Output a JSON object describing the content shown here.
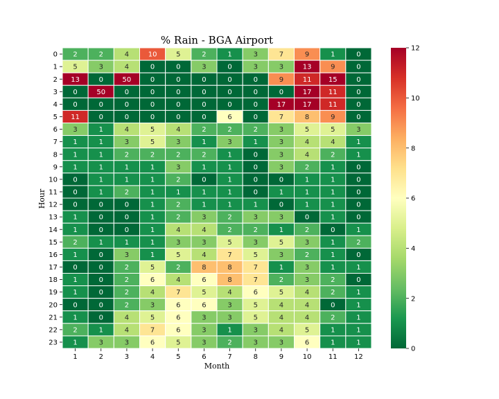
{
  "chart_data": {
    "type": "heatmap",
    "title": "% Rain - BGA Airport",
    "xlabel": "Month",
    "ylabel": "Hour",
    "x_categories": [
      "1",
      "2",
      "3",
      "4",
      "5",
      "6",
      "7",
      "8",
      "9",
      "10",
      "11",
      "12"
    ],
    "y_categories": [
      "0",
      "1",
      "2",
      "3",
      "4",
      "5",
      "6",
      "7",
      "8",
      "9",
      "10",
      "11",
      "12",
      "13",
      "14",
      "15",
      "16",
      "17",
      "18",
      "19",
      "20",
      "21",
      "22",
      "23"
    ],
    "colormap": "RdYlGn_r",
    "color_range": [
      0,
      12
    ],
    "colorbar_ticks": [
      "0",
      "2",
      "4",
      "6",
      "8",
      "10",
      "12"
    ],
    "annotated": true,
    "values": [
      [
        2,
        2,
        4,
        10,
        5,
        2,
        1,
        3,
        7,
        9,
        1,
        0
      ],
      [
        5,
        3,
        4,
        0,
        0,
        3,
        0,
        3,
        3,
        13,
        9,
        0
      ],
      [
        13,
        0,
        50,
        0,
        0,
        0,
        0,
        0,
        9,
        11,
        15,
        0
      ],
      [
        0,
        50,
        0,
        0,
        0,
        0,
        0,
        0,
        0,
        17,
        11,
        0
      ],
      [
        0,
        0,
        0,
        0,
        0,
        0,
        0,
        0,
        17,
        17,
        11,
        0
      ],
      [
        11,
        0,
        0,
        0,
        0,
        0,
        6,
        0,
        7,
        8,
        9,
        0
      ],
      [
        3,
        1,
        4,
        5,
        4,
        2,
        2,
        2,
        3,
        5,
        5,
        3
      ],
      [
        1,
        1,
        3,
        5,
        3,
        1,
        3,
        1,
        3,
        4,
        4,
        1
      ],
      [
        1,
        1,
        2,
        2,
        2,
        2,
        1,
        0,
        3,
        4,
        2,
        1
      ],
      [
        1,
        1,
        1,
        1,
        3,
        1,
        1,
        0,
        3,
        2,
        1,
        0
      ],
      [
        0,
        1,
        1,
        1,
        2,
        0,
        1,
        0,
        0,
        1,
        1,
        0
      ],
      [
        0,
        1,
        2,
        1,
        1,
        1,
        1,
        0,
        1,
        1,
        1,
        0
      ],
      [
        0,
        0,
        0,
        1,
        2,
        1,
        1,
        1,
        0,
        1,
        1,
        0
      ],
      [
        1,
        0,
        0,
        1,
        2,
        3,
        2,
        3,
        3,
        0,
        1,
        0
      ],
      [
        1,
        0,
        0,
        1,
        4,
        4,
        2,
        2,
        1,
        2,
        0,
        1
      ],
      [
        2,
        1,
        1,
        1,
        3,
        3,
        5,
        3,
        5,
        3,
        1,
        2
      ],
      [
        1,
        0,
        3,
        1,
        5,
        4,
        7,
        5,
        3,
        2,
        1,
        0
      ],
      [
        0,
        0,
        2,
        5,
        2,
        8,
        8,
        7,
        1,
        3,
        1,
        1
      ],
      [
        1,
        0,
        2,
        6,
        4,
        6,
        8,
        7,
        2,
        3,
        2,
        0
      ],
      [
        1,
        0,
        2,
        4,
        7,
        5,
        4,
        6,
        5,
        4,
        2,
        1
      ],
      [
        0,
        0,
        2,
        3,
        6,
        6,
        3,
        5,
        4,
        4,
        0,
        1
      ],
      [
        1,
        0,
        4,
        5,
        6,
        3,
        3,
        5,
        4,
        4,
        2,
        1
      ],
      [
        2,
        1,
        4,
        7,
        6,
        3,
        1,
        3,
        4,
        5,
        1,
        1
      ],
      [
        1,
        3,
        3,
        6,
        5,
        3,
        2,
        3,
        3,
        6,
        1,
        1
      ]
    ]
  }
}
